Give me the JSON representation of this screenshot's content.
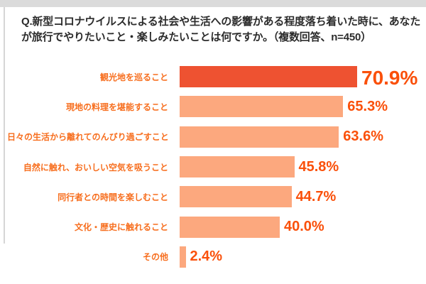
{
  "page": {
    "background": "#FFFFFF",
    "border_band_color": "#DBDBDB"
  },
  "title": {
    "line1": "Q.新型コロナウイルスによる社会や生活への影響がある程度落ち着いた時に、あなた",
    "line2": "が旅行でやりたいこと・楽しみたいことは何ですか。（複数回答、n=450）",
    "color": "#2B2B2B"
  },
  "chart_data": {
    "type": "bar",
    "orientation": "horizontal",
    "title": "Q.新型コロナウイルスによる社会や生活への影響がある程度落ち着いた時に、あなたが旅行でやりたいこと・楽しみたいことは何ですか。（複数回答、n=450）",
    "sample_note": "複数回答、n=450",
    "n": 450,
    "unit": "%",
    "categories": [
      "観光地を巡ること",
      "現地の料理を堪能すること",
      "日々の生活から離れてのんびり過ごすこと",
      "自然に触れ、おいしい空気を吸うこと",
      "同行者との時間を楽しむこと",
      "文化・歴史に触れること",
      "その他"
    ],
    "values": [
      70.9,
      65.3,
      63.6,
      45.8,
      44.7,
      40.0,
      2.4
    ],
    "value_labels": [
      "70.9%",
      "65.3%",
      "63.6%",
      "45.8%",
      "44.7%",
      "40.0%",
      "2.4%"
    ],
    "xlim": [
      0,
      71
    ],
    "grid": false,
    "legend": false,
    "colors": {
      "bar_top": "#EE5231",
      "bar_rest": "#FCA87E",
      "category_label": "#F76E1E",
      "value_label": "#FA500A"
    }
  }
}
